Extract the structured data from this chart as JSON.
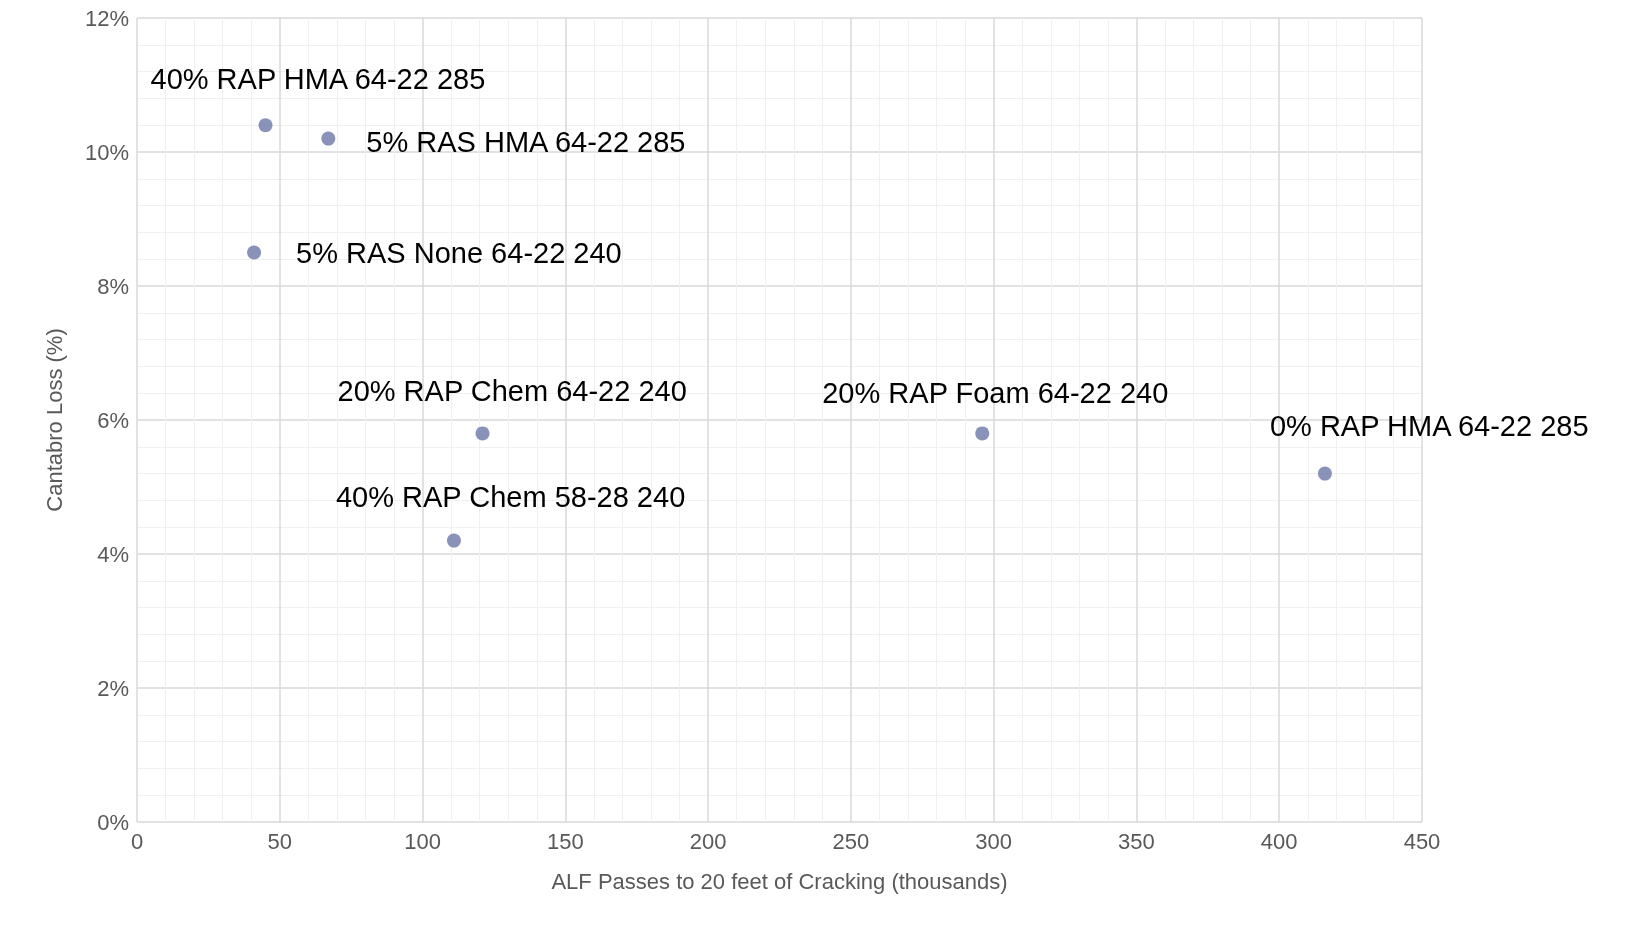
{
  "chart_data": {
    "type": "scatter",
    "xlabel": "ALF Passes to 20 feet of Cracking (thousands)",
    "ylabel": "Cantabro Loss (%)",
    "x": [
      45,
      67,
      41,
      121,
      111,
      296,
      416
    ],
    "series": [
      {
        "color": "#6b77a8",
        "values": [
          10.4,
          10.2,
          8.5,
          5.8,
          4.2,
          5.8,
          5.2
        ]
      }
    ],
    "xlim": [
      0,
      450
    ],
    "xticks": [
      0,
      50,
      100,
      150,
      200,
      250,
      300,
      350,
      400,
      450
    ],
    "ylim": [
      0,
      12
    ],
    "yticks": [
      {
        "value": 0,
        "label": "0%"
      },
      {
        "value": 2,
        "label": "2%"
      },
      {
        "value": 4,
        "label": "4%"
      },
      {
        "value": 6,
        "label": "6%"
      },
      {
        "value": 8,
        "label": "8%"
      },
      {
        "value": 10,
        "label": "10%"
      },
      {
        "value": 12,
        "label": "12%"
      }
    ],
    "annotations": [
      {
        "text": "40% RAP HMA 64-22 285",
        "x": 45,
        "y": 10.4
      },
      {
        "text": "5% RAS HMA 64-22 285",
        "x": 67,
        "y": 10.2
      },
      {
        "text": "5% RAS None 64-22 240",
        "x": 41,
        "y": 8.5
      },
      {
        "text": "20% RAP Chem 64-22 240",
        "x": 121,
        "y": 5.8
      },
      {
        "text": "40% RAP Chem 58-28 240",
        "x": 111,
        "y": 4.2
      },
      {
        "text": "20% RAP Foam 64-22 240",
        "x": 296,
        "y": 5.8
      },
      {
        "text": "0% RAP HMA 64-22 285",
        "x": 416,
        "y": 5.2
      }
    ],
    "grid": true,
    "marker": "circle"
  }
}
